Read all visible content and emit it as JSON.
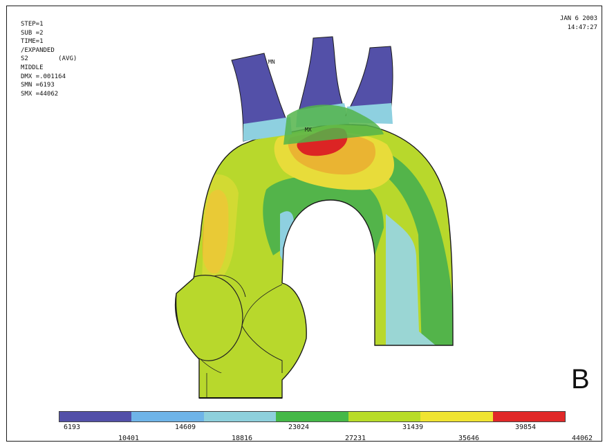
{
  "info": {
    "lines": [
      "STEP=1",
      "SUB =2",
      "TIME=1",
      "/EXPANDED",
      "S2        (AVG)",
      "MIDDLE",
      "DMX =.001164",
      "SMN =6193",
      "SMX =44062"
    ]
  },
  "datetime": {
    "date": "JAN  6 2003",
    "time": "14:47:27"
  },
  "markers": {
    "min": "MN",
    "max": "MX"
  },
  "panel_letter": "B",
  "legend": {
    "colors": [
      "#5350a8",
      "#6fb4e8",
      "#8ed0dc",
      "#45b848",
      "#b8dc28",
      "#f0e432",
      "#e02828"
    ],
    "ticks_upper": [
      "6193",
      "14609",
      "23024",
      "31439",
      "39854"
    ],
    "ticks_lower": [
      "10401",
      "18816",
      "27231",
      "35646",
      "44062"
    ]
  },
  "colors": {
    "blue": "#5350a8",
    "light_blue": "#8ed0e0",
    "cyan": "#9ad6d4",
    "green": "#53b44a",
    "yellow_green": "#b8d82c",
    "yellow": "#e8dc3a",
    "orange": "#eab432",
    "red": "#dc2424"
  }
}
